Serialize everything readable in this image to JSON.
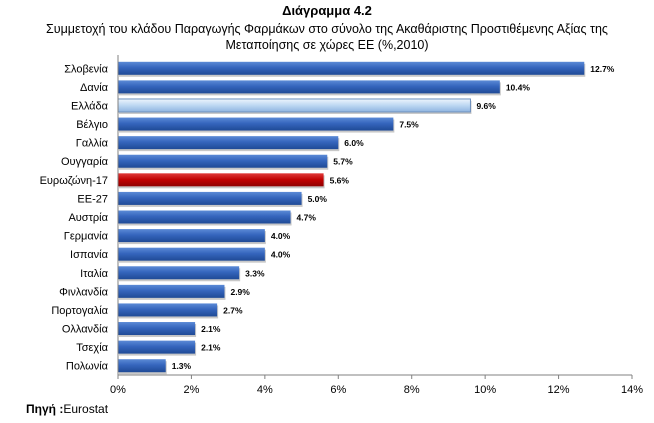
{
  "heading": "Διάγραμμα 4.2",
  "source_label": "Πηγή :",
  "source_value": "Eurostat",
  "colors": {
    "default_bar": "#2f5fb3",
    "highlight_greece": "#bcd7f2",
    "highlight_eurozone": "#c00000"
  },
  "chart_data": {
    "type": "bar",
    "orientation": "horizontal",
    "title_lines": [
      "Συμμετοχή του κλάδου Παραγωγής Φαρμάκων στο σύνολο της Ακαθάριστης Προστιθέμενης Αξίας της",
      "Μεταποίησης σε χώρες ΕΕ (%,2010)"
    ],
    "categories": [
      "Σλοβενία",
      "Δανία",
      "Ελλάδα",
      "Βέλγιο",
      "Γαλλία",
      "Ουγγαρία",
      "Ευρωζώνη-17",
      "ΕΕ-27",
      "Αυστρία",
      "Γερμανία",
      "Ισπανία",
      "Ιταλία",
      "Φινλανδία",
      "Πορτογαλία",
      "Ολλανδία",
      "Τσεχία",
      "Πολωνία"
    ],
    "values": [
      12.7,
      10.4,
      9.6,
      7.5,
      6.0,
      5.7,
      5.6,
      5.0,
      4.7,
      4.0,
      4.0,
      3.3,
      2.9,
      2.7,
      2.1,
      2.1,
      1.3
    ],
    "data_labels": [
      "12.7%",
      "10.4%",
      "9.6%",
      "7.5%",
      "6.0%",
      "5.7%",
      "5.6%",
      "5.0%",
      "4.7%",
      "4.0%",
      "4.0%",
      "3.3%",
      "2.9%",
      "2.7%",
      "2.1%",
      "2.1%",
      "1.3%"
    ],
    "highlight": {
      "Ελλάδα": "highlight_greece",
      "Ευρωζώνη-17": "highlight_eurozone"
    },
    "xlim": [
      0,
      14
    ],
    "xticks": [
      0,
      2,
      4,
      6,
      8,
      10,
      12,
      14
    ],
    "xtick_labels": [
      "0%",
      "2%",
      "4%",
      "6%",
      "8%",
      "10%",
      "12%",
      "14%"
    ],
    "grid": false,
    "legend": "none"
  }
}
